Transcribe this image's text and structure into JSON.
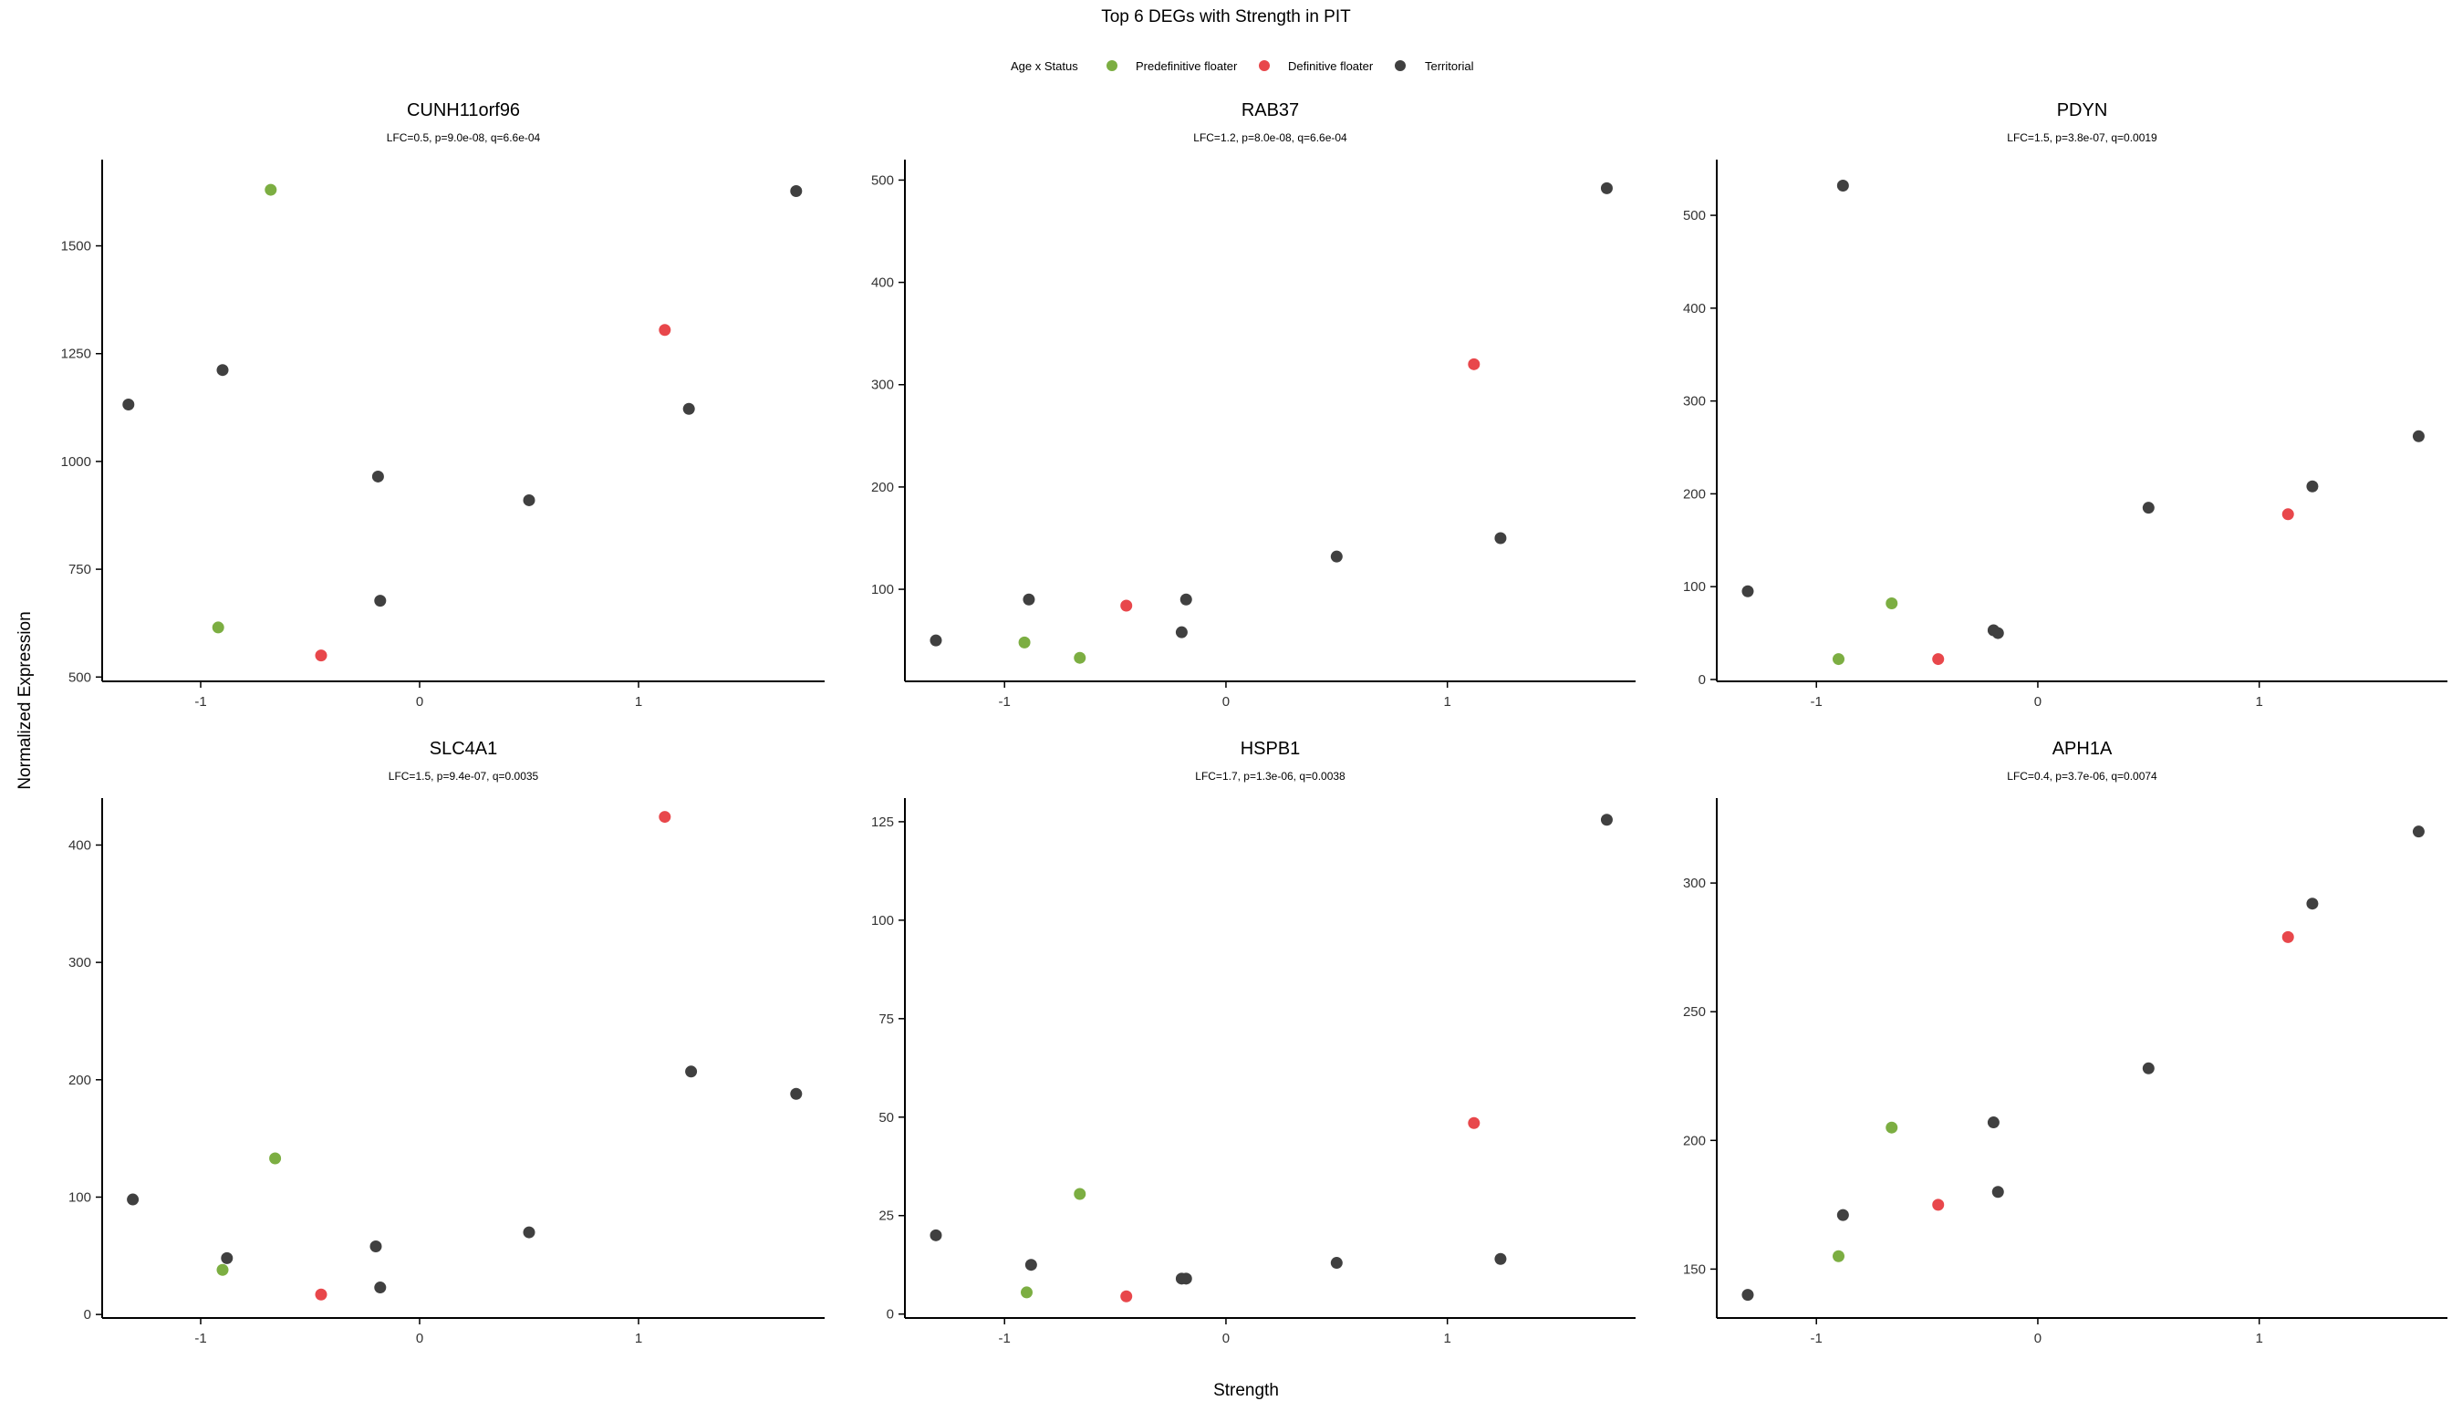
{
  "title": "Top 6 DEGs with Strength in PIT",
  "legend": {
    "title": "Age x Status",
    "entries": [
      {
        "label": "Predefinitive floater",
        "color": "#7cae42"
      },
      {
        "label": "Definitive floater",
        "color": "#e8474b"
      },
      {
        "label": "Territorial",
        "color": "#404040"
      }
    ]
  },
  "xlabel": "Strength",
  "ylabel": "Normalized Expression",
  "chart_data": [
    {
      "type": "scatter",
      "title": "CUNH11orf96",
      "subtitle": "LFC=0.5, p=9.0e-08, q=6.6e-04",
      "xlim": [
        -1.45,
        1.85
      ],
      "ylim": [
        490,
        1700
      ],
      "xticks": [
        -1,
        0,
        1
      ],
      "xtick_labels": [
        "-1",
        "0",
        "1"
      ],
      "yticks": [
        500,
        750,
        1000,
        1250,
        1500
      ],
      "ytick_labels": [
        "500",
        "750",
        "1000",
        "1250",
        "1500"
      ],
      "series": [
        {
          "name": "Predefinitive floater",
          "color": "#7cae42",
          "points": [
            [
              -0.68,
              1630
            ],
            [
              -0.92,
              615
            ]
          ]
        },
        {
          "name": "Definitive floater",
          "color": "#e8474b",
          "points": [
            [
              1.12,
              1305
            ],
            [
              -0.45,
              550
            ]
          ]
        },
        {
          "name": "Territorial",
          "color": "#404040",
          "points": [
            [
              -1.33,
              1132
            ],
            [
              -0.9,
              1212
            ],
            [
              -0.19,
              965
            ],
            [
              -0.18,
              677
            ],
            [
              0.5,
              910
            ],
            [
              1.23,
              1122
            ],
            [
              1.72,
              1627
            ]
          ]
        }
      ]
    },
    {
      "type": "scatter",
      "title": "RAB37",
      "subtitle": "LFC=1.2, p=8.0e-08, q=6.6e-04",
      "xlim": [
        -1.45,
        1.85
      ],
      "ylim": [
        10,
        520
      ],
      "xticks": [
        -1,
        0,
        1
      ],
      "xtick_labels": [
        "-1",
        "0",
        "1"
      ],
      "yticks": [
        100,
        200,
        300,
        400,
        500
      ],
      "ytick_labels": [
        "100",
        "200",
        "300",
        "400",
        "500"
      ],
      "series": [
        {
          "name": "Predefinitive floater",
          "color": "#7cae42",
          "points": [
            [
              -0.91,
              48
            ],
            [
              -0.66,
              33
            ]
          ]
        },
        {
          "name": "Definitive floater",
          "color": "#e8474b",
          "points": [
            [
              -0.45,
              84
            ],
            [
              1.12,
              320
            ]
          ]
        },
        {
          "name": "Territorial",
          "color": "#404040",
          "points": [
            [
              -1.31,
              50
            ],
            [
              -0.89,
              90
            ],
            [
              -0.2,
              58
            ],
            [
              -0.18,
              90
            ],
            [
              0.5,
              132
            ],
            [
              1.24,
              150
            ],
            [
              1.72,
              492
            ]
          ]
        }
      ]
    },
    {
      "type": "scatter",
      "title": "PDYN",
      "subtitle": "LFC=1.5, p=3.8e-07, q=0.0019",
      "xlim": [
        -1.45,
        1.85
      ],
      "ylim": [
        -2,
        560
      ],
      "xticks": [
        -1,
        0,
        1
      ],
      "xtick_labels": [
        "-1",
        "0",
        "1"
      ],
      "yticks": [
        0,
        100,
        200,
        300,
        400,
        500
      ],
      "ytick_labels": [
        "0",
        "100",
        "200",
        "300",
        "400",
        "500"
      ],
      "series": [
        {
          "name": "Predefinitive floater",
          "color": "#7cae42",
          "points": [
            [
              -0.66,
              82
            ],
            [
              -0.9,
              22
            ]
          ]
        },
        {
          "name": "Definitive floater",
          "color": "#e8474b",
          "points": [
            [
              -0.45,
              22
            ],
            [
              1.13,
              178
            ]
          ]
        },
        {
          "name": "Territorial",
          "color": "#404040",
          "points": [
            [
              -1.31,
              95
            ],
            [
              -0.88,
              532
            ],
            [
              -0.2,
              53
            ],
            [
              -0.18,
              50
            ],
            [
              0.5,
              185
            ],
            [
              1.24,
              208
            ],
            [
              1.72,
              262
            ]
          ]
        }
      ]
    },
    {
      "type": "scatter",
      "title": "SLC4A1",
      "subtitle": "LFC=1.5, p=9.4e-07, q=0.0035",
      "xlim": [
        -1.45,
        1.85
      ],
      "ylim": [
        -3,
        440
      ],
      "xticks": [
        -1,
        0,
        1
      ],
      "xtick_labels": [
        "-1",
        "0",
        "1"
      ],
      "yticks": [
        0,
        100,
        200,
        300,
        400
      ],
      "ytick_labels": [
        "0",
        "100",
        "200",
        "300",
        "400"
      ],
      "series": [
        {
          "name": "Predefinitive floater",
          "color": "#7cae42",
          "points": [
            [
              -0.66,
              133
            ],
            [
              -0.9,
              38
            ]
          ]
        },
        {
          "name": "Definitive floater",
          "color": "#e8474b",
          "points": [
            [
              1.12,
              424
            ],
            [
              -0.45,
              17
            ]
          ]
        },
        {
          "name": "Territorial",
          "color": "#404040",
          "points": [
            [
              -1.31,
              98
            ],
            [
              -0.88,
              48
            ],
            [
              -0.2,
              58
            ],
            [
              -0.18,
              23
            ],
            [
              0.5,
              70
            ],
            [
              1.24,
              207
            ],
            [
              1.72,
              188
            ]
          ]
        }
      ]
    },
    {
      "type": "scatter",
      "title": "HSPB1",
      "subtitle": "LFC=1.7, p=1.3e-06, q=0.0038",
      "xlim": [
        -1.45,
        1.85
      ],
      "ylim": [
        -1,
        131
      ],
      "xticks": [
        -1,
        0,
        1
      ],
      "xtick_labels": [
        "-1",
        "0",
        "1"
      ],
      "yticks": [
        0,
        25,
        50,
        75,
        100,
        125
      ],
      "ytick_labels": [
        "0",
        "25",
        "50",
        "75",
        "100",
        "125"
      ],
      "series": [
        {
          "name": "Predefinitive floater",
          "color": "#7cae42",
          "points": [
            [
              -0.66,
              30.5
            ],
            [
              -0.9,
              5.5
            ]
          ]
        },
        {
          "name": "Definitive floater",
          "color": "#e8474b",
          "points": [
            [
              1.12,
              48.5
            ],
            [
              -0.45,
              4.5
            ]
          ]
        },
        {
          "name": "Territorial",
          "color": "#404040",
          "points": [
            [
              -1.31,
              20
            ],
            [
              -0.88,
              12.5
            ],
            [
              -0.2,
              9
            ],
            [
              -0.18,
              9
            ],
            [
              0.5,
              13
            ],
            [
              1.24,
              14
            ],
            [
              1.72,
              125.5
            ]
          ]
        }
      ]
    },
    {
      "type": "scatter",
      "title": "APH1A",
      "subtitle": "LFC=0.4, p=3.7e-06, q=0.0074",
      "xlim": [
        -1.45,
        1.85
      ],
      "ylim": [
        131,
        333
      ],
      "xticks": [
        -1,
        0,
        1
      ],
      "xtick_labels": [
        "-1",
        "0",
        "1"
      ],
      "yticks": [
        150,
        200,
        250,
        300
      ],
      "ytick_labels": [
        "150",
        "200",
        "250",
        "300"
      ],
      "series": [
        {
          "name": "Predefinitive floater",
          "color": "#7cae42",
          "points": [
            [
              -0.66,
              205
            ],
            [
              -0.9,
              155
            ]
          ]
        },
        {
          "name": "Definitive floater",
          "color": "#e8474b",
          "points": [
            [
              1.13,
              279
            ],
            [
              -0.45,
              175
            ]
          ]
        },
        {
          "name": "Territorial",
          "color": "#404040",
          "points": [
            [
              -1.31,
              140
            ],
            [
              -0.88,
              171
            ],
            [
              -0.2,
              207
            ],
            [
              -0.18,
              180
            ],
            [
              0.5,
              228
            ],
            [
              1.24,
              292
            ],
            [
              1.72,
              320
            ]
          ]
        }
      ]
    }
  ]
}
